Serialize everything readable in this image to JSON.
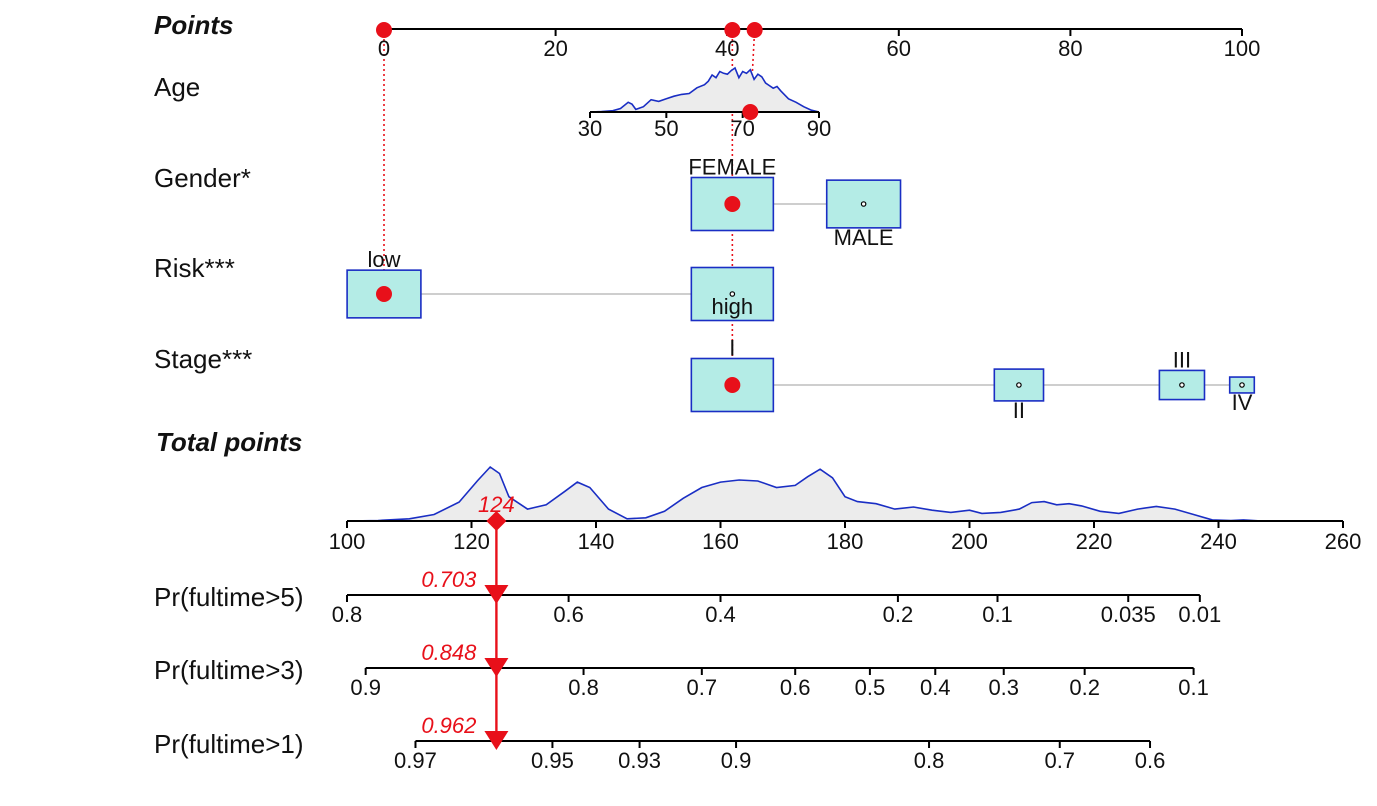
{
  "chart_data": {
    "type": "nomogram",
    "points_axis": {
      "label": "Points",
      "range": [
        0,
        100
      ],
      "ticks": [
        "0",
        "20",
        "40",
        "60",
        "80",
        "100"
      ],
      "highlighted_points": [
        0,
        40.6,
        43.2
      ]
    },
    "variables": [
      {
        "key": "age",
        "label": "Age",
        "ticks": [
          "30",
          "50",
          "70",
          "90"
        ],
        "tick_values": [
          30,
          50,
          70,
          90
        ],
        "observed": 72,
        "density": [
          [
            30,
            0.0
          ],
          [
            33,
            0.01
          ],
          [
            36,
            0.03
          ],
          [
            38,
            0.08
          ],
          [
            40,
            0.22
          ],
          [
            41,
            0.18
          ],
          [
            42,
            0.06
          ],
          [
            44,
            0.12
          ],
          [
            46,
            0.28
          ],
          [
            48,
            0.24
          ],
          [
            50,
            0.3
          ],
          [
            52,
            0.36
          ],
          [
            54,
            0.4
          ],
          [
            56,
            0.42
          ],
          [
            58,
            0.55
          ],
          [
            60,
            0.62
          ],
          [
            61,
            0.7
          ],
          [
            62,
            0.84
          ],
          [
            63,
            0.78
          ],
          [
            64,
            0.92
          ],
          [
            65,
            0.88
          ],
          [
            66,
            0.86
          ],
          [
            67,
            0.94
          ],
          [
            68,
            1.0
          ],
          [
            69,
            0.78
          ],
          [
            70,
            0.92
          ],
          [
            71,
            0.88
          ],
          [
            72,
            0.96
          ],
          [
            73,
            0.74
          ],
          [
            74,
            0.86
          ],
          [
            75,
            0.8
          ],
          [
            76,
            0.66
          ],
          [
            77,
            0.6
          ],
          [
            78,
            0.54
          ],
          [
            79,
            0.58
          ],
          [
            80,
            0.48
          ],
          [
            82,
            0.3
          ],
          [
            84,
            0.22
          ],
          [
            86,
            0.12
          ],
          [
            88,
            0.04
          ],
          [
            90,
            0.0
          ]
        ]
      },
      {
        "key": "gender",
        "label": "Gender*",
        "categories": [
          {
            "label": "FEMALE",
            "points": 40.6,
            "label_pos": "above",
            "box_size": 1.0,
            "observed": true
          },
          {
            "label": "MALE",
            "points": 55.9,
            "label_pos": "below",
            "box_size": 0.9,
            "observed": false
          }
        ]
      },
      {
        "key": "risk",
        "label": "Risk***",
        "categories": [
          {
            "label": "low",
            "points": 0,
            "label_pos": "above",
            "box_size": 0.9,
            "observed": true
          },
          {
            "label": "high",
            "points": 40.6,
            "label_pos": "inside",
            "box_size": 1.0,
            "observed": false
          }
        ]
      },
      {
        "key": "stage",
        "label": "Stage***",
        "categories": [
          {
            "label": "I",
            "points": 40.6,
            "label_pos": "above",
            "box_size": 1.0,
            "observed": true
          },
          {
            "label": "II",
            "points": 74.0,
            "label_pos": "below",
            "box_size": 0.6,
            "observed": false
          },
          {
            "label": "III",
            "points": 93.0,
            "label_pos": "above",
            "box_size": 0.55,
            "observed": false
          },
          {
            "label": "IV",
            "points": 100.0,
            "label_pos": "below",
            "box_size": 0.3,
            "observed": false
          }
        ]
      }
    ],
    "total_points": {
      "label": "Total points",
      "range": [
        100,
        260
      ],
      "ticks": [
        "100",
        "120",
        "140",
        "160",
        "180",
        "200",
        "220",
        "240",
        "260"
      ],
      "observed": 124,
      "observed_label": "124",
      "density": [
        [
          100,
          0.0
        ],
        [
          105,
          0.01
        ],
        [
          110,
          0.04
        ],
        [
          114,
          0.12
        ],
        [
          118,
          0.35
        ],
        [
          121,
          0.75
        ],
        [
          123,
          1.0
        ],
        [
          124.5,
          0.88
        ],
        [
          126,
          0.45
        ],
        [
          129,
          0.22
        ],
        [
          132,
          0.3
        ],
        [
          135,
          0.55
        ],
        [
          137,
          0.72
        ],
        [
          139,
          0.62
        ],
        [
          142,
          0.22
        ],
        [
          145,
          0.04
        ],
        [
          148,
          0.06
        ],
        [
          151,
          0.18
        ],
        [
          154,
          0.42
        ],
        [
          157,
          0.62
        ],
        [
          160,
          0.72
        ],
        [
          163,
          0.76
        ],
        [
          166,
          0.74
        ],
        [
          169,
          0.62
        ],
        [
          172,
          0.66
        ],
        [
          174,
          0.82
        ],
        [
          176,
          0.96
        ],
        [
          178,
          0.8
        ],
        [
          180,
          0.45
        ],
        [
          182,
          0.36
        ],
        [
          185,
          0.32
        ],
        [
          188,
          0.22
        ],
        [
          191,
          0.26
        ],
        [
          194,
          0.2
        ],
        [
          197,
          0.16
        ],
        [
          200,
          0.2
        ],
        [
          202,
          0.14
        ],
        [
          205,
          0.16
        ],
        [
          208,
          0.22
        ],
        [
          210,
          0.34
        ],
        [
          212,
          0.36
        ],
        [
          214,
          0.3
        ],
        [
          216,
          0.32
        ],
        [
          218,
          0.28
        ],
        [
          221,
          0.18
        ],
        [
          224,
          0.14
        ],
        [
          227,
          0.22
        ],
        [
          230,
          0.27
        ],
        [
          233,
          0.22
        ],
        [
          236,
          0.12
        ],
        [
          239,
          0.02
        ],
        [
          242,
          0.01
        ],
        [
          244,
          0.02
        ],
        [
          247,
          0.0
        ]
      ]
    },
    "probabilities": [
      {
        "label": "Pr(fultime>5)",
        "value_label": "0.703",
        "tick_labels": [
          "0.8",
          "0.6",
          "0.4",
          "0.2",
          "0.1",
          "0.035",
          "0.01"
        ],
        "tick_total_points": [
          100,
          135.6,
          160.0,
          188.5,
          204.5,
          225.5,
          237.0
        ]
      },
      {
        "label": "Pr(fultime>3)",
        "value_label": "0.848",
        "tick_labels": [
          "0.9",
          "0.8",
          "0.7",
          "0.6",
          "0.5",
          "0.4",
          "0.3",
          "0.2",
          "0.1"
        ],
        "tick_total_points": [
          103.0,
          138.0,
          157.0,
          172.0,
          184.0,
          194.5,
          205.5,
          218.5,
          236.0
        ]
      },
      {
        "label": "Pr(fultime>1)",
        "value_label": "0.962",
        "tick_labels": [
          "0.97",
          "0.95",
          "0.93",
          "0.9",
          "0.8",
          "0.7",
          "0.6"
        ],
        "tick_total_points": [
          111.0,
          133.0,
          147.0,
          162.5,
          193.5,
          214.5,
          229.0
        ]
      }
    ],
    "colors": {
      "observed": "#e8101a",
      "box_fill": "#b4ece6",
      "box_stroke": "#1a2ec4",
      "density_stroke": "#1a2ec4",
      "density_fill": "#ececec",
      "connector": "#bdbdbd"
    }
  }
}
